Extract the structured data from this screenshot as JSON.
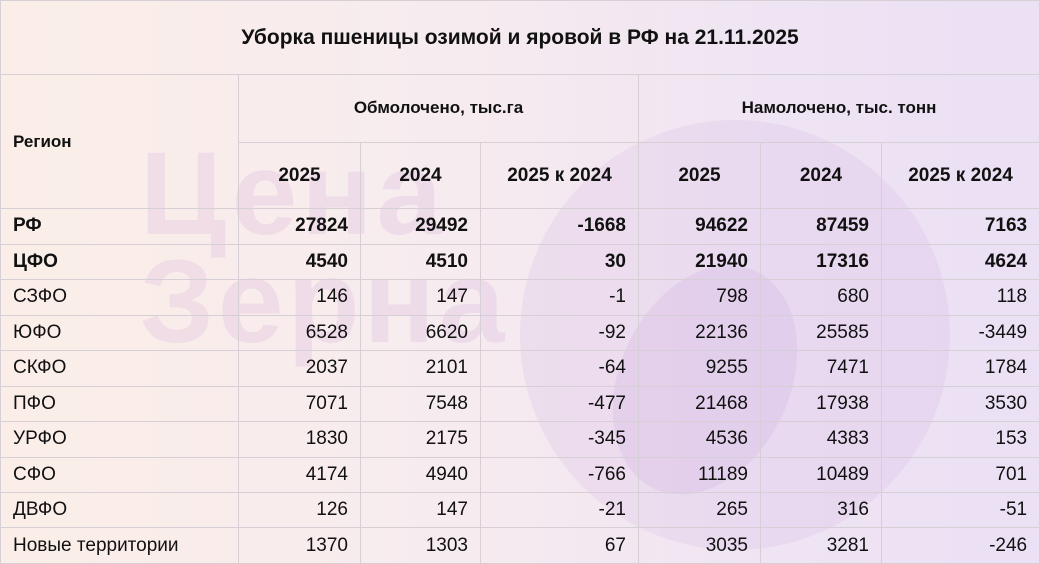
{
  "title": "Уборка пшеницы озимой и яровой в РФ на 21.11.2025",
  "watermark": [
    "Цена",
    "Зерна"
  ],
  "header": {
    "region": "Регион",
    "group1": "Обмолочено, тыс.га",
    "group2": "Намолочено, тыс. тонн",
    "sub": [
      "2025",
      "2024",
      "2025 к 2024",
      "2025",
      "2024",
      "2025 к 2024"
    ]
  },
  "rows": [
    {
      "region": "РФ",
      "v": [
        "27824",
        "29492",
        "-1668",
        "94622",
        "87459",
        "7163"
      ]
    },
    {
      "region": "ЦФО",
      "v": [
        "4540",
        "4510",
        "30",
        "21940",
        "17316",
        "4624"
      ]
    },
    {
      "region": "СЗФО",
      "v": [
        "146",
        "147",
        "-1",
        "798",
        "680",
        "118"
      ]
    },
    {
      "region": "ЮФО",
      "v": [
        "6528",
        "6620",
        "-92",
        "22136",
        "25585",
        "-3449"
      ]
    },
    {
      "region": "СКФО",
      "v": [
        "2037",
        "2101",
        "-64",
        "9255",
        "7471",
        "1784"
      ]
    },
    {
      "region": "ПФО",
      "v": [
        "7071",
        "7548",
        "-477",
        "21468",
        "17938",
        "3530"
      ]
    },
    {
      "region": "УРФО",
      "v": [
        "1830",
        "2175",
        "-345",
        "4536",
        "4383",
        "153"
      ]
    },
    {
      "region": "СФО",
      "v": [
        "4174",
        "4940",
        "-766",
        "11189",
        "10489",
        "701"
      ]
    },
    {
      "region": "ДВФО",
      "v": [
        "126",
        "147",
        "-21",
        "265",
        "316",
        "-51"
      ]
    },
    {
      "region": "Новые территории",
      "v": [
        "1370",
        "1303",
        "67",
        "3035",
        "3281",
        "-246"
      ]
    }
  ]
}
